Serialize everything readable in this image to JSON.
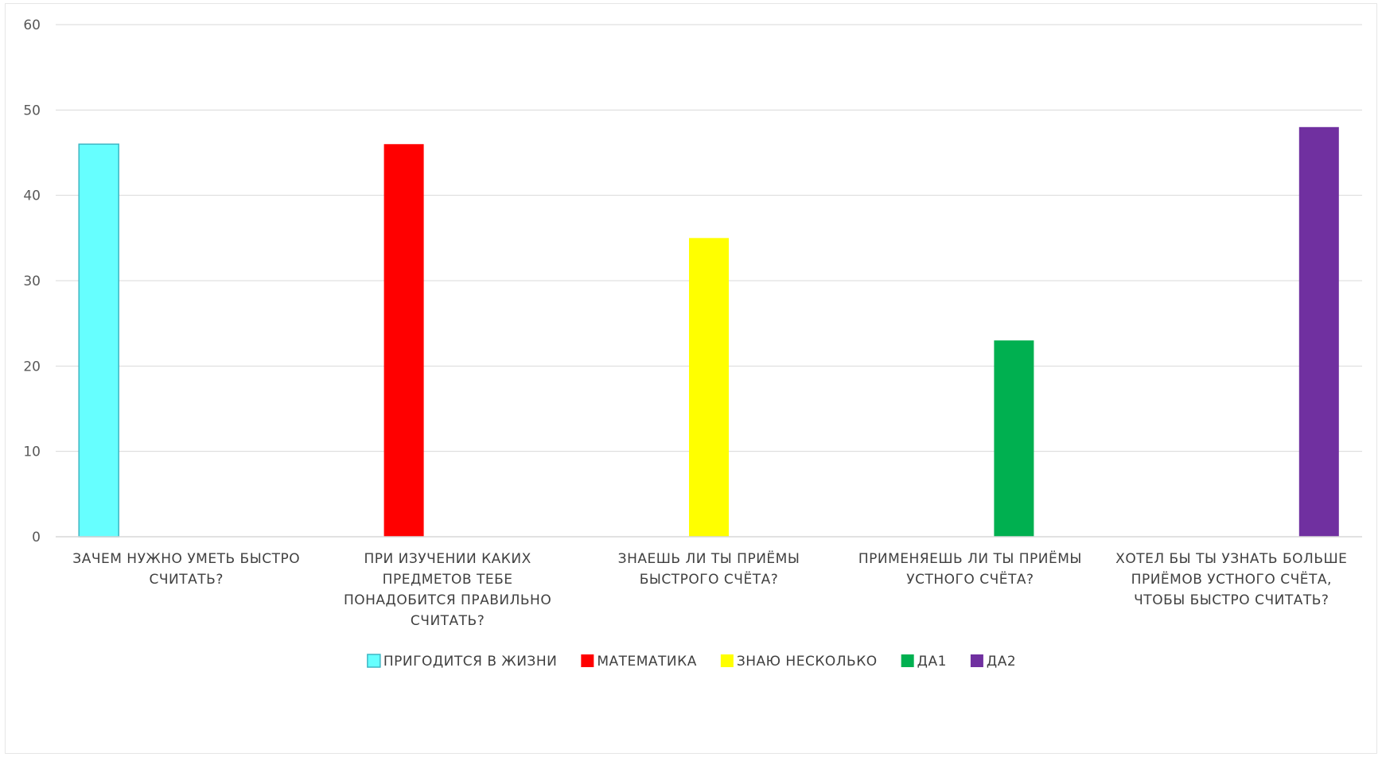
{
  "chart_data": {
    "type": "bar",
    "title": "",
    "xlabel": "",
    "ylabel": "",
    "ylim": [
      0,
      60
    ],
    "yticks": [
      0,
      10,
      20,
      30,
      40,
      50,
      60
    ],
    "grid": true,
    "legend_position": "bottom",
    "categories": [
      [
        "ЗАЧЕМ НУЖНО УМЕТЬ БЫСТРО",
        "СЧИТАТЬ?"
      ],
      [
        "ПРИ ИЗУЧЕНИИ КАКИХ",
        "ПРЕДМЕТОВ ТЕБЕ",
        "ПОНАДОБИТСЯ ПРАВИЛЬНО",
        "СЧИТАТЬ?"
      ],
      [
        "ЗНАЕШЬ ЛИ ТЫ ПРИЁМЫ",
        "БЫСТРОГО СЧЁТА?"
      ],
      [
        "ПРИМЕНЯЕШЬ ЛИ ТЫ ПРИЁМЫ",
        "УСТНОГО СЧЁТА?"
      ],
      [
        "ХОТЕЛ БЫ ТЫ УЗНАТЬ БОЛЬШЕ",
        "ПРИЁМОВ УСТНОГО СЧЁТА,",
        "ЧТОБЫ БЫСТРО СЧИТАТЬ?"
      ]
    ],
    "series": [
      {
        "name": "ПРИГОДИТСЯ В ЖИЗНИ",
        "color": "#66FFFF",
        "values": [
          46,
          null,
          null,
          null,
          null
        ]
      },
      {
        "name": "МАТЕМАТИКА",
        "color": "#FF0000",
        "values": [
          null,
          46,
          null,
          null,
          null
        ]
      },
      {
        "name": "ЗНАЮ НЕСКОЛЬКО",
        "color": "#FFFF00",
        "values": [
          null,
          null,
          35,
          null,
          null
        ]
      },
      {
        "name": "ДА1",
        "color": "#00B050",
        "values": [
          null,
          null,
          null,
          23,
          null
        ]
      },
      {
        "name": "ДА2",
        "color": "#7030A0",
        "values": [
          null,
          null,
          null,
          null,
          48
        ]
      }
    ]
  }
}
